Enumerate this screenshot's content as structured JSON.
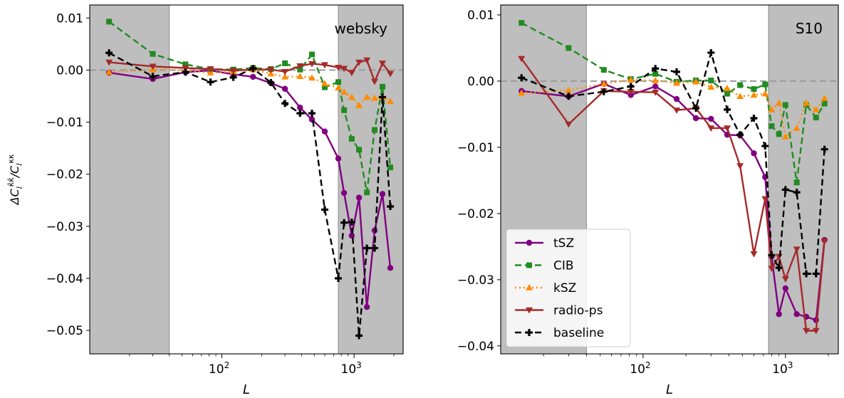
{
  "chart_data": [
    {
      "type": "line",
      "title": "websky",
      "xlabel": "L",
      "ylabel": "ΔC_l^{κ̂κ̂}/C_l^{κκ}",
      "xscale": "log",
      "xlim": [
        10,
        2350
      ],
      "ylim": [
        -0.0545,
        0.0125
      ],
      "yticks": [
        0.01,
        0.0,
        -0.01,
        -0.02,
        -0.03,
        -0.04,
        -0.05
      ],
      "ytick_labels": [
        "0.01",
        "0.00",
        "−0.01",
        "−0.02",
        "−0.03",
        "−0.04",
        "−0.05"
      ],
      "xticks": [
        100,
        1000
      ],
      "xtick_labels": [
        "10²",
        "10³"
      ],
      "shaded_ranges": [
        [
          10,
          40
        ],
        [
          760,
          2350
        ]
      ],
      "zero_line": true,
      "grid": false,
      "x": [
        14,
        30,
        53,
        82,
        122,
        172,
        235,
        300,
        390,
        480,
        600,
        760,
        840,
        960,
        1090,
        1250,
        1430,
        1640,
        1880
      ],
      "series": [
        {
          "name": "tSZ",
          "color": "#800080",
          "style": "solid",
          "marker": "circle",
          "values": [
            -0.0005,
            -0.0017,
            -0.0004,
            -0.0001,
            -0.0008,
            -0.0013,
            -0.0025,
            -0.0036,
            -0.0072,
            -0.0095,
            -0.0118,
            -0.017,
            -0.0236,
            -0.0318,
            -0.0245,
            -0.0455,
            -0.0308,
            -0.0238,
            -0.038
          ]
        },
        {
          "name": "CIB",
          "color": "#228b22",
          "style": "dashed",
          "marker": "square",
          "values": [
            0.0093,
            0.0031,
            0.0011,
            0.0002,
            0.0001,
            0.0004,
            0.0002,
            0.0013,
            0.0001,
            0.003,
            -0.0033,
            -0.0023,
            -0.0077,
            -0.0132,
            -0.0153,
            -0.0235,
            -0.0115,
            -0.0032,
            -0.0187
          ]
        },
        {
          "name": "kSZ",
          "color": "#ff8c00",
          "style": "dotted",
          "marker": "triangle-up",
          "values": [
            -0.0004,
            0.0001,
            -0.0001,
            -0.0005,
            -0.0003,
            0.0001,
            -0.0007,
            -0.0013,
            -0.0012,
            -0.0015,
            -0.0026,
            -0.0034,
            -0.0042,
            -0.0052,
            -0.0068,
            -0.0052,
            -0.0054,
            -0.0052,
            -0.006
          ]
        },
        {
          "name": "radio-ps",
          "color": "#a52a2a",
          "style": "solid",
          "marker": "triangle-down",
          "values": [
            0.0015,
            0.0007,
            0.0004,
            0.0002,
            -0.0001,
            0.0001,
            0.0001,
            -0.0003,
            0.0008,
            0.0012,
            0.001,
            0.0005,
            0.0003,
            -0.0005,
            0.0015,
            0.0019,
            -0.0022,
            0.0013,
            -0.0007
          ]
        },
        {
          "name": "baseline",
          "color": "#000000",
          "style": "dashed",
          "marker": "plus",
          "values": [
            0.0033,
            -0.0012,
            -0.0004,
            -0.0023,
            -0.0014,
            0.0003,
            -0.0024,
            -0.0064,
            -0.0083,
            -0.0083,
            -0.0268,
            -0.04,
            -0.0293,
            -0.0292,
            -0.051,
            -0.0342,
            -0.0342,
            -0.0052,
            -0.0262
          ]
        }
      ]
    },
    {
      "type": "line",
      "title": "S10",
      "xlabel": "L",
      "ylabel": "",
      "xscale": "log",
      "xlim": [
        10,
        2350
      ],
      "ylim": [
        -0.0412,
        0.0115
      ],
      "yticks": [
        0.01,
        0.0,
        -0.01,
        -0.02,
        -0.03,
        -0.04
      ],
      "ytick_labels": [
        "0.01",
        "0.00",
        "−0.01",
        "−0.02",
        "−0.03",
        "−0.04"
      ],
      "xticks": [
        100,
        1000
      ],
      "xtick_labels": [
        "10²",
        "10³"
      ],
      "shaded_ranges": [
        [
          10,
          40
        ],
        [
          760,
          2350
        ]
      ],
      "zero_line": true,
      "grid": false,
      "x": [
        14,
        30,
        53,
        82,
        122,
        172,
        235,
        300,
        390,
        480,
        600,
        720,
        800,
        900,
        1000,
        1200,
        1400,
        1640,
        1880
      ],
      "series": [
        {
          "name": "tSZ",
          "color": "#800080",
          "style": "solid",
          "marker": "circle",
          "values": [
            -0.0015,
            -0.0023,
            -0.0004,
            -0.0021,
            -0.0008,
            -0.0027,
            -0.0056,
            -0.0057,
            -0.0081,
            -0.0082,
            -0.0109,
            -0.0145,
            -0.0265,
            -0.0352,
            -0.0313,
            -0.0352,
            -0.0356,
            -0.0361,
            -0.024
          ]
        },
        {
          "name": "CIB",
          "color": "#228b22",
          "style": "dashed",
          "marker": "square",
          "values": [
            0.0088,
            0.005,
            0.0017,
            0.0003,
            0.0011,
            -0.0001,
            0.0001,
            0.0001,
            -0.0019,
            -0.0006,
            -0.0012,
            -0.0005,
            -0.0068,
            -0.008,
            -0.0036,
            -0.0153,
            -0.0036,
            -0.0055,
            -0.0034
          ]
        },
        {
          "name": "kSZ",
          "color": "#ff8c00",
          "style": "dotted",
          "marker": "triangle-up",
          "values": [
            -0.0018,
            -0.0014,
            -0.0004,
            0.0002,
            0.0001,
            -0.0003,
            -0.0001,
            -0.0009,
            -0.0011,
            -0.0023,
            -0.0021,
            -0.0019,
            -0.0043,
            -0.0033,
            -0.0084,
            -0.0071,
            -0.0033,
            -0.0043,
            -0.0026
          ]
        },
        {
          "name": "radio-ps",
          "color": "#a52a2a",
          "style": "solid",
          "marker": "triangle-down",
          "values": [
            0.0034,
            -0.0065,
            -0.0015,
            -0.0016,
            -0.0017,
            -0.0044,
            -0.0041,
            -0.0071,
            -0.0071,
            -0.0128,
            -0.0261,
            -0.0178,
            -0.0283,
            -0.0265,
            -0.0299,
            -0.0254,
            -0.0377,
            -0.0377,
            -0.0242
          ]
        },
        {
          "name": "baseline",
          "color": "#000000",
          "style": "dashed",
          "marker": "plus",
          "values": [
            0.0005,
            -0.0023,
            -0.0016,
            -0.0008,
            0.0019,
            0.0014,
            -0.0041,
            0.0043,
            -0.0043,
            -0.0081,
            -0.0056,
            -0.0098,
            -0.0263,
            -0.0282,
            -0.0164,
            -0.0168,
            -0.0291,
            -0.0291,
            -0.0103
          ]
        }
      ]
    }
  ],
  "legend": {
    "placement": "lower-left of right panel",
    "entries": [
      "tSZ",
      "CIB",
      "kSZ",
      "radio-ps",
      "baseline"
    ]
  }
}
